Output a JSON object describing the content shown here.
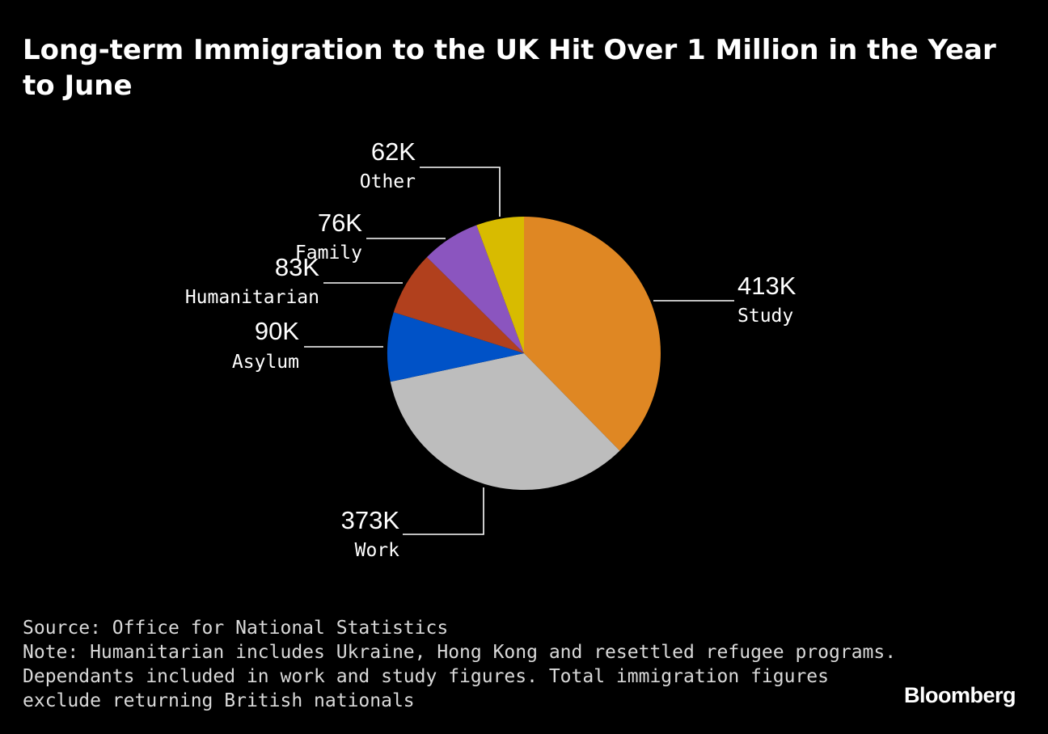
{
  "title": "Long-term Immigration to the UK Hit Over 1 Million in the Year to June",
  "chart_data": {
    "type": "pie",
    "title": "Long-term Immigration to the UK Hit Over 1 Million in the Year to June",
    "start_angle_deg": 0,
    "direction": "clockwise",
    "slices": [
      {
        "name": "Study",
        "value": 413,
        "label": "413K",
        "color": "#df8723"
      },
      {
        "name": "Work",
        "value": 373,
        "label": "373K",
        "color": "#bdbdbd"
      },
      {
        "name": "Asylum",
        "value": 90,
        "label": "90K",
        "color": "#0052c7"
      },
      {
        "name": "Humanitarian",
        "value": 83,
        "label": "83K",
        "color": "#b1401d"
      },
      {
        "name": "Family",
        "value": 76,
        "label": "76K",
        "color": "#8b55bf"
      },
      {
        "name": "Other",
        "value": 62,
        "label": "62K",
        "color": "#d8bb00"
      }
    ]
  },
  "footer": {
    "source": "Source: Office for National Statistics",
    "note_lines": [
      "Note: Humanitarian includes Ukraine, Hong Kong and resettled refugee programs.",
      "Dependants included in work and study figures. Total immigration figures",
      "exclude returning British nationals"
    ]
  },
  "brand": "Bloomberg",
  "colors": {
    "background": "#000000",
    "text": "#ffffff",
    "leader": "#ffffff"
  }
}
